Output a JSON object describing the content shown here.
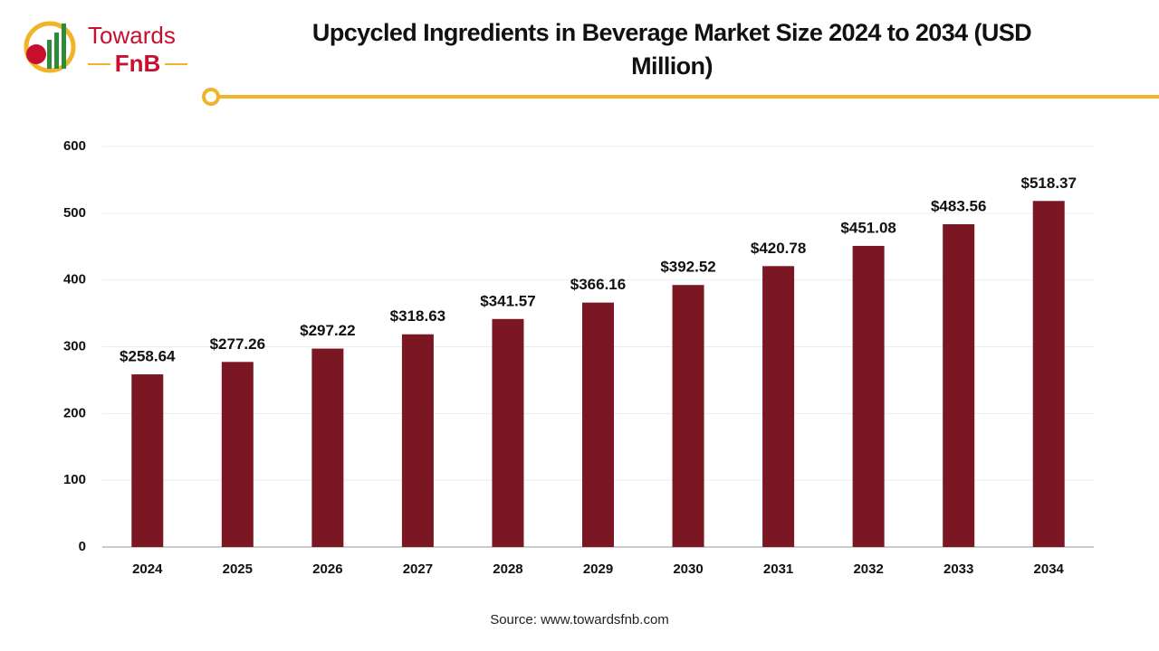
{
  "logo": {
    "line1": "Towards",
    "line2": "FnB"
  },
  "chart_data": {
    "type": "bar",
    "title": "Upcycled Ingredients in Beverage Market Size 2024 to 2034 (USD Million)",
    "categories": [
      "2024",
      "2025",
      "2026",
      "2027",
      "2028",
      "2029",
      "2030",
      "2031",
      "2032",
      "2033",
      "2034"
    ],
    "values": [
      258.64,
      277.26,
      297.22,
      318.63,
      341.57,
      366.16,
      392.52,
      420.78,
      451.08,
      483.56,
      518.37
    ],
    "value_labels": [
      "$258.64",
      "$277.26",
      "$297.22",
      "$318.63",
      "$341.57",
      "$366.16",
      "$392.52",
      "$420.78",
      "$451.08",
      "$483.56",
      "$518.37"
    ],
    "color": "#7b1722",
    "ylim": [
      0,
      600
    ],
    "yticks": [
      0,
      100,
      200,
      300,
      400,
      500,
      600
    ],
    "grid": true,
    "source": "Source: www.towardsfnb.com"
  }
}
